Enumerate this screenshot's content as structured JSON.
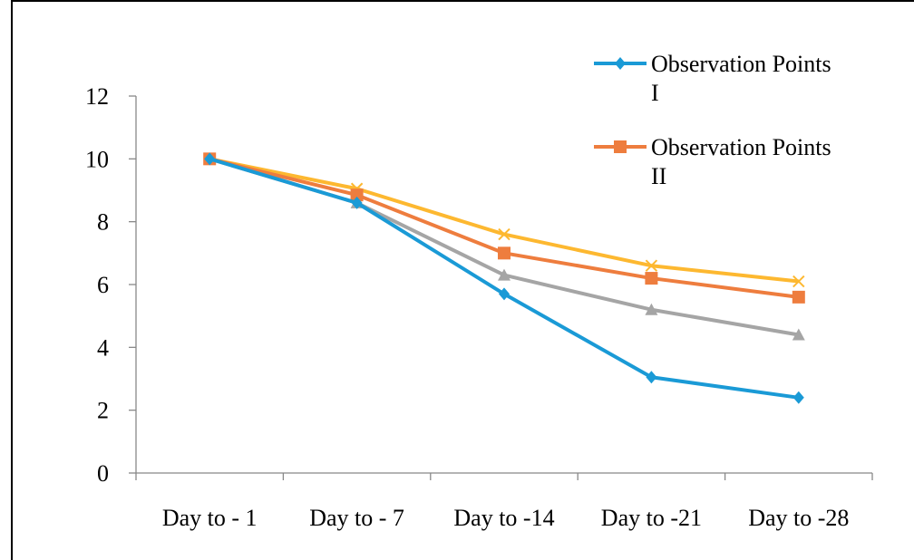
{
  "chart_data": {
    "type": "line",
    "categories": [
      "Day to - 1",
      "Day to - 7",
      "Day to -14",
      "Day to -21",
      "Day to -28"
    ],
    "ylim": [
      0,
      12
    ],
    "yticks": [
      0,
      2,
      4,
      6,
      8,
      10,
      12
    ],
    "grid": false,
    "legend_position": "top-right",
    "series": [
      {
        "name": "Observation Points I",
        "legend_lines": [
          "Observation Points",
          "I"
        ],
        "color": "#1a9ad6",
        "marker": "diamond",
        "values": [
          10,
          8.6,
          5.7,
          3.05,
          2.4
        ]
      },
      {
        "name": "Observation Points II",
        "legend_lines": [
          "Observation Points",
          "II"
        ],
        "color": "#ee7d3e",
        "marker": "square",
        "values": [
          10,
          8.85,
          7.0,
          6.2,
          5.6
        ]
      },
      {
        "name": "",
        "color": "#a5a5a5",
        "marker": "triangle",
        "values": [
          10,
          8.6,
          6.3,
          5.2,
          4.4
        ]
      },
      {
        "name": "",
        "color": "#fdb830",
        "marker": "cross",
        "values": [
          10,
          9.05,
          7.6,
          6.6,
          6.1
        ]
      }
    ]
  }
}
